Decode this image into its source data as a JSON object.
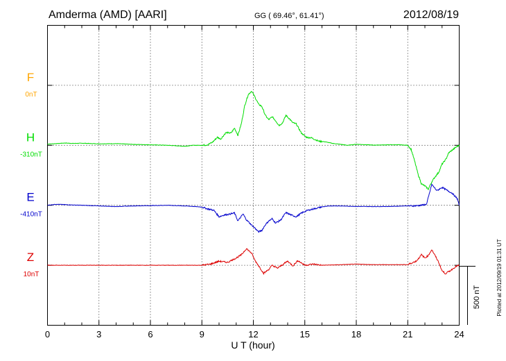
{
  "header": {
    "station": "Amderma (AMD)  [AARI]",
    "coords": "GG ( 69.46°,  61.41°)",
    "date": "2012/08/19"
  },
  "plotted_note": "Plotted at 2012/09/19 01:31  UT",
  "scale_bar_label": "500 nT",
  "colors": {
    "F": "#ffa500",
    "H": "#00dd00",
    "E": "#0000cc",
    "Z": "#dd0000",
    "grid": "#000000"
  },
  "chart_data": {
    "type": "line",
    "xlabel": "U T (hour)",
    "xlim": [
      0,
      24
    ],
    "x_ticks": [
      "0",
      "3",
      "6",
      "9",
      "12",
      "15",
      "18",
      "21",
      "24"
    ],
    "grid": true,
    "scale_bar_nT": 500,
    "nt_per_division": 575,
    "series": [
      {
        "name": "F",
        "baseline_label": "0nT",
        "division": 1,
        "x": [],
        "y": []
      },
      {
        "name": "H",
        "baseline_label": "-310nT",
        "division": 2,
        "x": [
          0,
          0.5,
          1,
          1.5,
          2,
          3,
          4,
          5,
          6,
          7,
          8,
          8.5,
          9,
          9.3,
          9.6,
          9.9,
          10.1,
          10.4,
          10.7,
          10.9,
          11.1,
          11.3,
          11.5,
          11.7,
          11.9,
          12.1,
          12.3,
          12.5,
          12.7,
          12.9,
          13.1,
          13.3,
          13.5,
          13.7,
          13.9,
          14.1,
          14.3,
          14.5,
          14.8,
          15.1,
          15.4,
          15.8,
          16.2,
          16.6,
          17,
          17.5,
          18,
          19,
          20,
          20.5,
          21,
          21.2,
          21.4,
          21.6,
          21.8,
          22,
          22.2,
          22.4,
          22.6,
          22.8,
          23,
          23.2,
          23.4,
          23.6,
          23.8,
          24
        ],
        "y": [
          12,
          16,
          22,
          18,
          20,
          14,
          16,
          9,
          5,
          0,
          -9,
          0,
          0,
          4,
          27,
          77,
          60,
          122,
          117,
          165,
          96,
          207,
          383,
          486,
          520,
          460,
          395,
          371,
          287,
          245,
          274,
          235,
          190,
          215,
          287,
          255,
          216,
          205,
          117,
          77,
          71,
          40,
          33,
          19,
          11,
          0,
          10,
          2,
          5,
          5,
          0,
          -40,
          -150,
          -277,
          -370,
          -390,
          -420,
          -350,
          -300,
          -260,
          -180,
          -140,
          -70,
          -45,
          -19,
          0
        ]
      },
      {
        "name": "E",
        "baseline_label": "-410nT",
        "division": 3,
        "x": [
          0,
          0.5,
          1,
          2,
          3,
          4,
          5,
          6,
          7,
          8,
          8.5,
          9,
          9.3,
          9.7,
          10,
          10.3,
          10.6,
          10.9,
          11.1,
          11.4,
          11.6,
          11.9,
          12.1,
          12.3,
          12.5,
          12.7,
          12.9,
          13.1,
          13.3,
          13.6,
          13.9,
          14.2,
          14.5,
          14.8,
          15.1,
          15.5,
          16,
          16.5,
          17,
          18,
          19,
          20,
          21,
          21.3,
          21.6,
          21.9,
          22.1,
          22.4,
          22.7,
          23,
          23.3,
          23.6,
          23.9,
          24
        ],
        "y": [
          0,
          10,
          6,
          0,
          -6,
          -12,
          -6,
          -3,
          0,
          -6,
          -11,
          -17,
          -33,
          -48,
          -110,
          -93,
          -85,
          -74,
          -150,
          -84,
          -140,
          -190,
          -220,
          -255,
          -240,
          -186,
          -150,
          -130,
          -170,
          -140,
          -70,
          -93,
          -110,
          -75,
          -52,
          -35,
          -15,
          -6,
          -6,
          -11,
          -12,
          -11,
          -5,
          -6,
          -3,
          3,
          11,
          200,
          140,
          172,
          142,
          115,
          60,
          0
        ]
      },
      {
        "name": "Z",
        "baseline_label": "10nT",
        "division": 4,
        "x": [
          0,
          1,
          2,
          3,
          4,
          5,
          6,
          7,
          8,
          9,
          9.5,
          10,
          10.5,
          11,
          11.3,
          11.6,
          11.9,
          12.1,
          12.3,
          12.6,
          12.9,
          13.1,
          13.4,
          13.7,
          14,
          14.3,
          14.6,
          15,
          15.5,
          16,
          17,
          18,
          19,
          20,
          21,
          21.5,
          21.8,
          22,
          22.2,
          22.4,
          22.6,
          22.8,
          23,
          23.2,
          23.5,
          23.8,
          24
        ],
        "y": [
          0,
          0,
          0,
          0,
          0,
          0,
          0,
          0,
          0,
          0,
          11,
          39,
          28,
          70,
          100,
          160,
          115,
          45,
          -3,
          -77,
          -40,
          0,
          -28,
          5,
          40,
          -5,
          45,
          0,
          11,
          0,
          5,
          11,
          6,
          6,
          6,
          40,
          100,
          70,
          94,
          150,
          90,
          30,
          -53,
          -80,
          -50,
          -12,
          0
        ]
      }
    ]
  }
}
